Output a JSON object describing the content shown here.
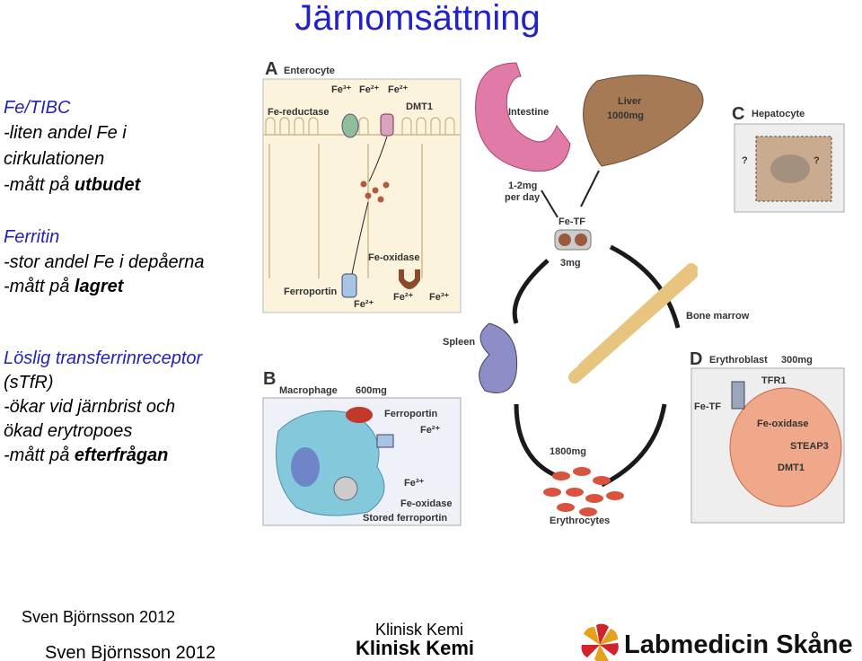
{
  "title": "Järnomsättning",
  "left_text": [
    {
      "heading": "Fe/TIBC",
      "lines": [
        {
          "text": "-liten andel Fe i"
        },
        {
          "text": "cirkulationen"
        },
        {
          "text": "-mått på ",
          "emphasis": "utbudet"
        }
      ]
    },
    {
      "heading": "Ferritin",
      "lines": [
        {
          "text": "-stor andel Fe i depåerna"
        },
        {
          "text": "-mått på ",
          "emphasis": "lagret"
        }
      ]
    },
    {
      "heading": "Löslig transferrinreceptor",
      "lines": [
        {
          "text": "(sTfR)"
        },
        {
          "text": "-ökar vid järnbrist och"
        },
        {
          "text": "ökad erytropoes"
        },
        {
          "text": "-mått på ",
          "emphasis": "efterfrågan"
        }
      ]
    }
  ],
  "diagram": {
    "panel_a": {
      "letter": "A",
      "title": "Enterocyte",
      "fe3_top": "Fe³⁺",
      "fe2_top1": "Fe²⁺",
      "fe2_top2": "Fe²⁺",
      "reductase": "Fe-reductase",
      "dmt1": "DMT1",
      "oxidase": "Fe-oxidase",
      "ferroportin": "Ferroportin",
      "fe2_bottom1": "Fe²⁺",
      "fe2_bottom2": "Fe²⁺",
      "fe3_bottom": "Fe³⁺"
    },
    "intestine": {
      "label": "Intestine",
      "amount": [
        "1-2mg",
        "per day"
      ]
    },
    "liver": {
      "label": "Liver",
      "amount": "1000mg"
    },
    "panel_c": {
      "letter": "C",
      "title": "Hepatocyte",
      "q1": "?",
      "q2": "?"
    },
    "transferrin": {
      "label": "Fe-TF",
      "amount": "3mg"
    },
    "bone_marrow": "Bone marrow",
    "spleen": "Spleen",
    "panel_b": {
      "letter": "B",
      "title": "Macrophage",
      "amount": "600mg",
      "ferroportin": "Ferroportin",
      "fe2": "Fe²⁺",
      "fe3": "Fe³⁺",
      "oxidase": "Fe-oxidase",
      "stored": "Stored ferroportin"
    },
    "erythrocytes": {
      "amount": "1800mg",
      "label": "Erythrocytes"
    },
    "panel_d": {
      "letter": "D",
      "title": "Erythroblast",
      "amount": "300mg",
      "tfr1": "TFR1",
      "fetf": "Fe-TF",
      "oxidase": "Fe-oxidase",
      "steap3": "STEAP3",
      "dmt1": "DMT1"
    }
  },
  "footer": {
    "author_small": "Sven Björnsson 2012",
    "author": "Sven Björnsson 2012",
    "dept_small": "Klinisk Kemi",
    "dept": "Klinisk Kemi",
    "logo": "Labmedicin Skåne"
  }
}
